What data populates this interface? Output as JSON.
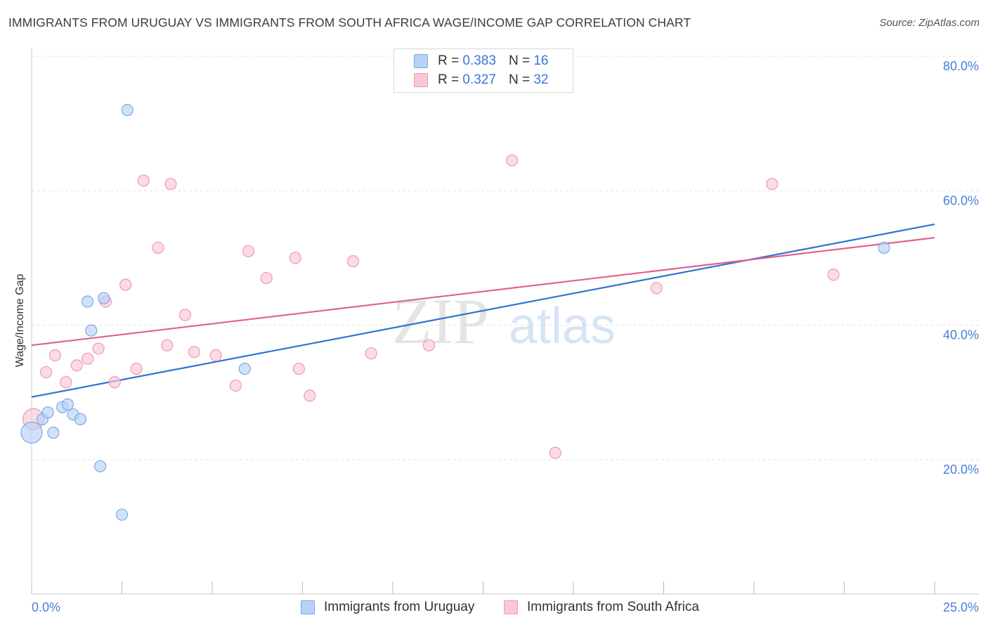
{
  "title": "IMMIGRANTS FROM URUGUAY VS IMMIGRANTS FROM SOUTH AFRICA WAGE/INCOME GAP CORRELATION CHART",
  "source": "Source: ZipAtlas.com",
  "watermark": {
    "zip": "ZIP",
    "atlas": "atlas"
  },
  "legend": {
    "r_label": "R =",
    "n_label": "N =",
    "uruguay": {
      "r": "0.383",
      "n": "16"
    },
    "south_africa": {
      "r": "0.327",
      "n": "32"
    }
  },
  "colors": {
    "uruguay_fill": "#b8d2f5",
    "uruguay_stroke": "#7aa9e8",
    "uruguay_line": "#2f73d3",
    "south_africa_fill": "#f9c8d7",
    "south_africa_stroke": "#ee9ab4",
    "south_africa_line": "#e0608c",
    "tick_label": "#4a7fd4",
    "grid": "#e3e3e3"
  },
  "chart_data": {
    "type": "scatter",
    "title": "IMMIGRANTS FROM URUGUAY VS IMMIGRANTS FROM SOUTH AFRICA WAGE/INCOME GAP CORRELATION CHART",
    "xlabel": "",
    "ylabel": "Wage/Income Gap",
    "xlim": [
      0,
      25
    ],
    "ylim": [
      0,
      80
    ],
    "x_tick_labels": [
      "0.0%",
      "25.0%"
    ],
    "y_ticks": [
      20,
      40,
      60,
      80
    ],
    "y_tick_labels": [
      "20.0%",
      "40.0%",
      "60.0%",
      "80.0%"
    ],
    "grid": "horizontal dashed",
    "legend_position": "top-center",
    "series": [
      {
        "name": "Immigrants from Uruguay",
        "points": [
          {
            "x": 0.0,
            "y": 24.0,
            "big": true
          },
          {
            "x": 0.3,
            "y": 26.0
          },
          {
            "x": 0.45,
            "y": 27.0
          },
          {
            "x": 0.6,
            "y": 24.0
          },
          {
            "x": 0.85,
            "y": 27.8
          },
          {
            "x": 1.0,
            "y": 28.2
          },
          {
            "x": 1.15,
            "y": 26.7
          },
          {
            "x": 1.35,
            "y": 26.0
          },
          {
            "x": 1.55,
            "y": 43.5
          },
          {
            "x": 1.65,
            "y": 39.2
          },
          {
            "x": 1.9,
            "y": 19.0
          },
          {
            "x": 2.0,
            "y": 44.0
          },
          {
            "x": 2.5,
            "y": 11.8
          },
          {
            "x": 2.65,
            "y": 72.0
          },
          {
            "x": 5.9,
            "y": 33.5
          },
          {
            "x": 23.6,
            "y": 51.5
          }
        ],
        "trend": {
          "x": [
            0,
            25
          ],
          "y": [
            29.3,
            55.0
          ]
        }
      },
      {
        "name": "Immigrants from South Africa",
        "points": [
          {
            "x": 0.05,
            "y": 26.0,
            "big": true
          },
          {
            "x": 0.4,
            "y": 33.0
          },
          {
            "x": 0.65,
            "y": 35.5
          },
          {
            "x": 0.95,
            "y": 31.5
          },
          {
            "x": 1.25,
            "y": 34.0
          },
          {
            "x": 1.55,
            "y": 35.0
          },
          {
            "x": 1.85,
            "y": 36.5
          },
          {
            "x": 2.05,
            "y": 43.5
          },
          {
            "x": 2.3,
            "y": 31.5
          },
          {
            "x": 2.6,
            "y": 46.0
          },
          {
            "x": 2.9,
            "y": 33.5
          },
          {
            "x": 3.1,
            "y": 61.5
          },
          {
            "x": 3.5,
            "y": 51.5
          },
          {
            "x": 3.75,
            "y": 37.0
          },
          {
            "x": 3.85,
            "y": 61.0
          },
          {
            "x": 4.25,
            "y": 41.5
          },
          {
            "x": 4.5,
            "y": 36.0
          },
          {
            "x": 5.1,
            "y": 35.5
          },
          {
            "x": 5.65,
            "y": 31.0
          },
          {
            "x": 6.0,
            "y": 51.0
          },
          {
            "x": 6.5,
            "y": 47.0
          },
          {
            "x": 7.3,
            "y": 50.0
          },
          {
            "x": 7.4,
            "y": 33.5
          },
          {
            "x": 7.7,
            "y": 29.5
          },
          {
            "x": 8.9,
            "y": 49.5
          },
          {
            "x": 9.4,
            "y": 35.8
          },
          {
            "x": 11.0,
            "y": 37.0
          },
          {
            "x": 13.3,
            "y": 64.5
          },
          {
            "x": 14.5,
            "y": 21.0
          },
          {
            "x": 17.3,
            "y": 45.5
          },
          {
            "x": 20.5,
            "y": 61.0
          },
          {
            "x": 22.2,
            "y": 47.5
          }
        ],
        "trend": {
          "x": [
            0,
            25
          ],
          "y": [
            37.0,
            53.0
          ]
        }
      }
    ]
  }
}
